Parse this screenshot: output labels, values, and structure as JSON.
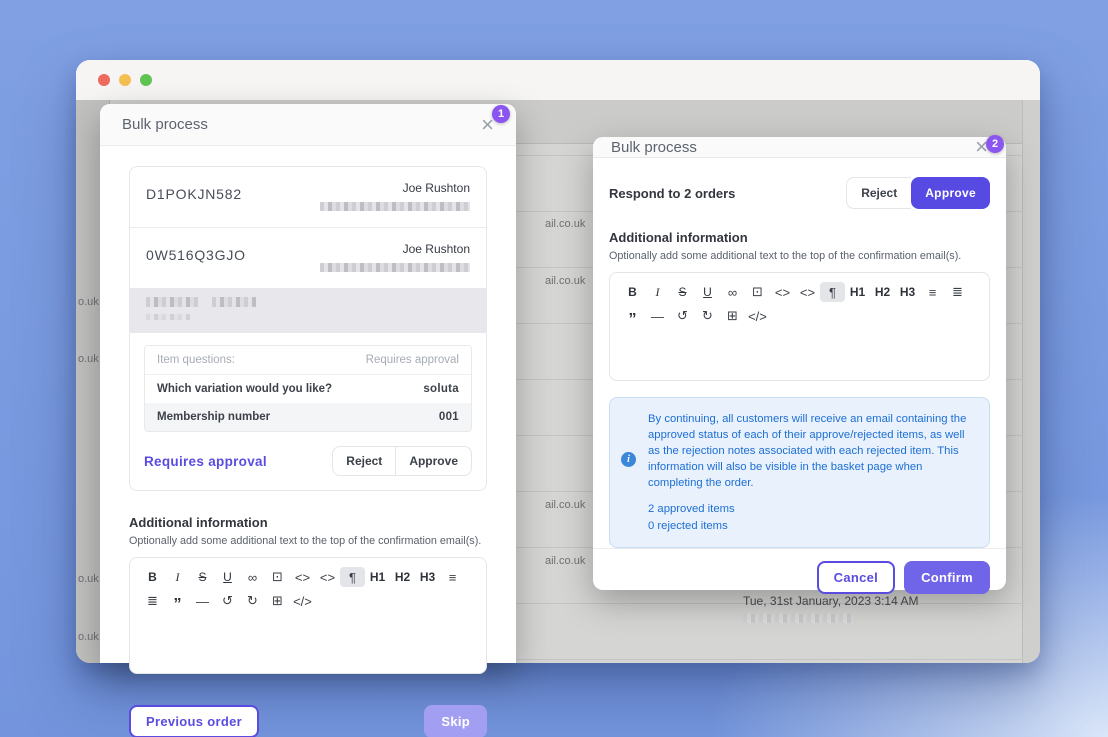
{
  "colors": {
    "accent": "#5a4ce0",
    "accent_fill": "#564ae2",
    "confirm_fill": "#7064e8",
    "skip_faded": "#a29ff2",
    "badge_purple": "#8b55f0",
    "info_text_blue": "#1d6fd3",
    "info_bg_blue": "#e8f1fc",
    "traffic_red": "#ee6a5e",
    "traffic_yellow": "#f4bf50",
    "traffic_green": "#5fc454"
  },
  "background": {
    "left_fragments": [
      "o.uk",
      "o.uk",
      "o.uk",
      "o.uk"
    ],
    "right_fragments": [
      "ail.co.uk",
      "ail.co.uk",
      "ail.co.uk",
      "ail.co.uk"
    ],
    "timestamp": "Tue, 31st January, 2023 3:14 AM"
  },
  "editor": {
    "icons": [
      {
        "name": "bold",
        "glyph": "B",
        "style": "b"
      },
      {
        "name": "italic",
        "glyph": "I",
        "style": "i"
      },
      {
        "name": "strikethrough",
        "glyph": "S",
        "style": "s"
      },
      {
        "name": "underline",
        "glyph": "U",
        "style": "u"
      },
      {
        "name": "link",
        "glyph": "∞",
        "style": "sym"
      },
      {
        "name": "image",
        "glyph": "⊡",
        "style": "sym"
      },
      {
        "name": "inline-code",
        "glyph": "<>",
        "style": "sym"
      },
      {
        "name": "code-block",
        "glyph": "<>",
        "style": "sym"
      },
      {
        "name": "paragraph",
        "glyph": "¶",
        "style": "sym",
        "active": true
      },
      {
        "name": "heading-1",
        "glyph": "H1",
        "style": "b"
      },
      {
        "name": "heading-2",
        "glyph": "H2",
        "style": "b"
      },
      {
        "name": "heading-3",
        "glyph": "H3",
        "style": "b"
      },
      {
        "name": "bullet-list",
        "glyph": "≡",
        "style": "sym"
      },
      {
        "name": "ordered-list",
        "glyph": "≣",
        "style": "sym"
      },
      {
        "name": "blockquote",
        "glyph": "”",
        "style": "q"
      },
      {
        "name": "horizontal-rule",
        "glyph": "—",
        "style": "sym"
      },
      {
        "name": "undo",
        "glyph": "↺",
        "style": "sym"
      },
      {
        "name": "redo",
        "glyph": "↻",
        "style": "sym"
      },
      {
        "name": "table",
        "glyph": "⊞",
        "style": "sym"
      },
      {
        "name": "code",
        "glyph": "</>",
        "style": "sym"
      }
    ]
  },
  "modal1": {
    "badge": "1",
    "title": "Bulk process",
    "close_glyph": "×",
    "orders": [
      {
        "code": "D1POKJN582",
        "customer": "Joe Rushton"
      },
      {
        "code": "0W516Q3GJO",
        "customer": "Joe Rushton"
      }
    ],
    "item": {
      "questions_header": "Item questions:",
      "approval_header": "Requires approval",
      "rows": [
        {
          "q": "Which variation would you like?",
          "a": "soluta"
        },
        {
          "q": "Membership number",
          "a": "001"
        }
      ],
      "status_link": "Requires approval",
      "reject": "Reject",
      "approve": "Approve"
    },
    "additional": {
      "title": "Additional information",
      "subtitle": "Optionally add some additional text to the top of the confirmation email(s)."
    },
    "footer": {
      "previous": "Previous order",
      "skip": "Skip"
    }
  },
  "modal2": {
    "badge": "2",
    "title": "Bulk process",
    "close_glyph": "×",
    "respond": "Respond to 2 orders",
    "reject": "Reject",
    "approve": "Approve",
    "additional": {
      "title": "Additional information",
      "subtitle": "Optionally add some additional text to the top of the confirmation email(s)."
    },
    "info": {
      "text": "By continuing, all customers will receive an email containing the approved status of each of their approve/rejected items, as well as the rejection notes associated with each rejected item. This information will also be visible in the basket page when completing the order.",
      "approved": "2 approved items",
      "rejected": "0 rejected items"
    },
    "footer": {
      "cancel": "Cancel",
      "confirm": "Confirm"
    }
  }
}
